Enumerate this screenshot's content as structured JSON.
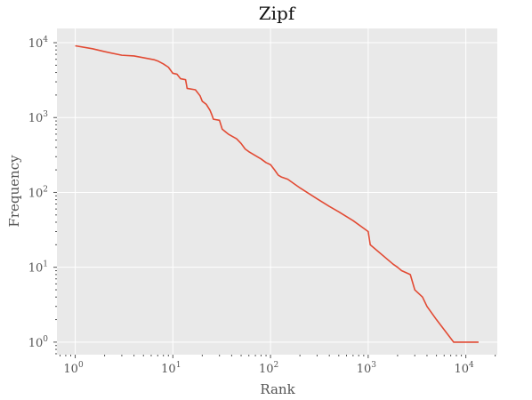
{
  "chart_data": {
    "type": "line",
    "title": "Zipf",
    "xlabel": "Rank",
    "ylabel": "Frequency",
    "x_scale": "log",
    "y_scale": "log",
    "xlim": [
      0.65,
      21000
    ],
    "ylim": [
      0.68,
      15500
    ],
    "grid": true,
    "background": "#e9e9e9",
    "x_ticks": [
      {
        "base": "10",
        "exp": "0",
        "value": 1
      },
      {
        "base": "10",
        "exp": "1",
        "value": 10
      },
      {
        "base": "10",
        "exp": "2",
        "value": 100
      },
      {
        "base": "10",
        "exp": "3",
        "value": 1000
      },
      {
        "base": "10",
        "exp": "4",
        "value": 10000
      }
    ],
    "y_ticks": [
      {
        "base": "10",
        "exp": "0",
        "value": 1
      },
      {
        "base": "10",
        "exp": "1",
        "value": 10
      },
      {
        "base": "10",
        "exp": "2",
        "value": 100
      },
      {
        "base": "10",
        "exp": "3",
        "value": 1000
      },
      {
        "base": "10",
        "exp": "4",
        "value": 10000
      }
    ],
    "series": [
      {
        "color": "#e24a33",
        "points": [
          [
            1,
            9100
          ],
          [
            1.5,
            8300
          ],
          [
            2,
            7600
          ],
          [
            3,
            6800
          ],
          [
            4,
            6650
          ],
          [
            5,
            6300
          ],
          [
            6.5,
            5900
          ],
          [
            7,
            5700
          ],
          [
            8,
            5200
          ],
          [
            9,
            4700
          ],
          [
            10,
            3900
          ],
          [
            11,
            3800
          ],
          [
            12,
            3300
          ],
          [
            13.5,
            3200
          ],
          [
            14,
            2450
          ],
          [
            17,
            2350
          ],
          [
            19,
            1950
          ],
          [
            20,
            1650
          ],
          [
            22,
            1500
          ],
          [
            24,
            1250
          ],
          [
            25,
            1100
          ],
          [
            26,
            950
          ],
          [
            30,
            920
          ],
          [
            32,
            700
          ],
          [
            37,
            600
          ],
          [
            45,
            520
          ],
          [
            50,
            450
          ],
          [
            55,
            380
          ],
          [
            60,
            350
          ],
          [
            70,
            310
          ],
          [
            80,
            280
          ],
          [
            90,
            250
          ],
          [
            100,
            235
          ],
          [
            110,
            200
          ],
          [
            120,
            170
          ],
          [
            130,
            160
          ],
          [
            150,
            150
          ],
          [
            200,
            115
          ],
          [
            300,
            82
          ],
          [
            400,
            65
          ],
          [
            500,
            55
          ],
          [
            700,
            42
          ],
          [
            1000,
            30
          ],
          [
            1050,
            20
          ],
          [
            1800,
            11
          ],
          [
            2000,
            10
          ],
          [
            2200,
            9
          ],
          [
            2700,
            8
          ],
          [
            3000,
            5
          ],
          [
            3600,
            4
          ],
          [
            4000,
            3
          ],
          [
            5000,
            2
          ],
          [
            7500,
            1
          ],
          [
            13500,
            1
          ]
        ]
      }
    ]
  }
}
